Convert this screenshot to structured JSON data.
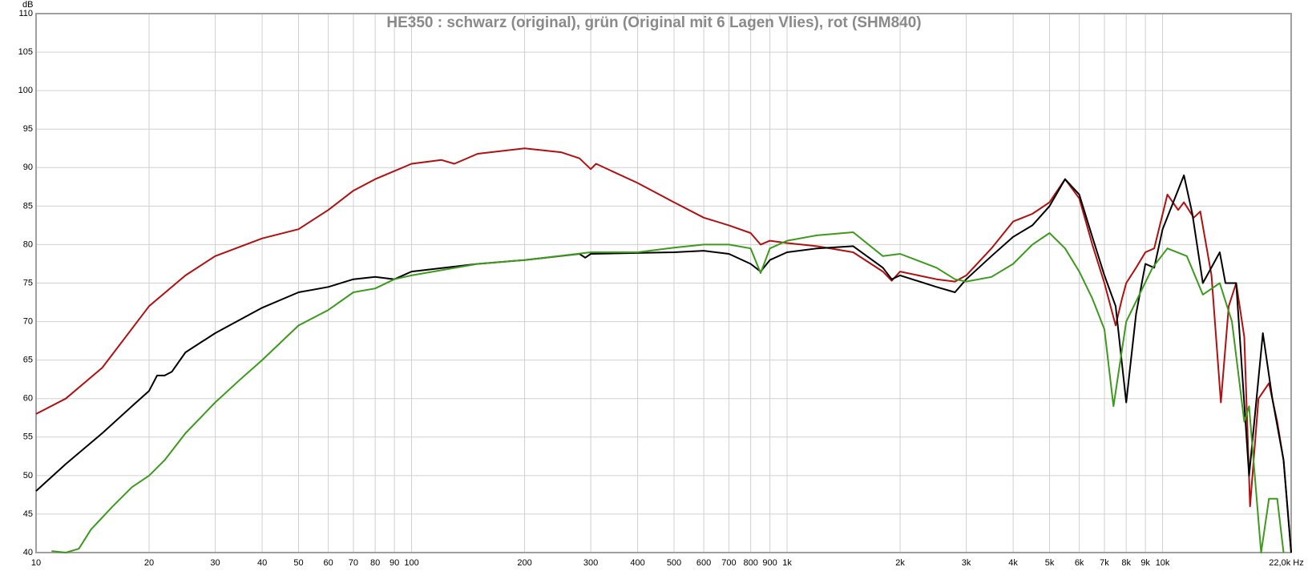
{
  "chart_data": {
    "type": "line",
    "title": "HE350 : schwarz (original), grün (Original mit 6 Lagen Vlies), rot (SHM840)",
    "ylabel": "dB",
    "log_x": true,
    "grid": true,
    "xlim": [
      10,
      22000
    ],
    "ylim": [
      40,
      110
    ],
    "yticks": [
      40,
      45,
      50,
      55,
      60,
      65,
      70,
      75,
      80,
      85,
      90,
      95,
      100,
      105,
      110
    ],
    "xticks": [
      10,
      20,
      30,
      40,
      50,
      60,
      70,
      80,
      90,
      100,
      200,
      300,
      400,
      500,
      600,
      700,
      800,
      900,
      {
        "value": 1000,
        "label": "1k"
      },
      {
        "value": 2000,
        "label": "2k"
      },
      {
        "value": 3000,
        "label": "3k"
      },
      {
        "value": 4000,
        "label": "4k"
      },
      {
        "value": 5000,
        "label": "5k"
      },
      {
        "value": 6000,
        "label": "6k"
      },
      {
        "value": 7000,
        "label": "7k"
      },
      {
        "value": 8000,
        "label": "8k"
      },
      {
        "value": 9000,
        "label": "9k"
      },
      {
        "value": 10000,
        "label": "10k"
      },
      {
        "value": 22000,
        "label": "22,0k Hz"
      }
    ],
    "series": [
      {
        "color": "#b01010",
        "x": [
          10,
          12,
          15,
          20,
          25,
          30,
          40,
          50,
          60,
          70,
          80,
          100,
          120,
          130,
          150,
          200,
          250,
          280,
          300,
          310,
          400,
          500,
          600,
          700,
          800,
          850,
          900,
          1000,
          1200,
          1500,
          1800,
          1900,
          2000,
          2500,
          2800,
          3000,
          3500,
          4000,
          4500,
          5000,
          5500,
          6000,
          6500,
          7000,
          7500,
          7800,
          8000,
          8500,
          9000,
          9500,
          10300,
          11000,
          11400,
          12100,
          12600,
          13500,
          14300,
          15000,
          15700,
          16500,
          17100,
          18000,
          19200,
          20200,
          21000,
          22000
        ],
        "values": [
          58,
          60,
          64,
          72,
          76,
          78.5,
          80.8,
          82,
          84.5,
          87,
          88.5,
          90.5,
          91,
          90.5,
          91.8,
          92.5,
          92,
          91.2,
          89.8,
          90.5,
          88,
          85.5,
          83.5,
          82.5,
          81.5,
          80,
          80.5,
          80.2,
          79.8,
          79,
          76.5,
          75.3,
          76.5,
          75.5,
          75.2,
          76,
          79.5,
          83,
          84,
          85.5,
          88.5,
          86,
          80,
          75,
          69.5,
          73,
          75,
          77,
          79,
          79.5,
          86.5,
          84.5,
          85.5,
          83.5,
          84.3,
          76,
          59.5,
          72,
          75,
          68,
          46,
          60,
          62,
          57,
          52,
          40
        ]
      },
      {
        "color": "#000000",
        "x": [
          10,
          12,
          15,
          18,
          20,
          21,
          22,
          23,
          25,
          30,
          40,
          50,
          60,
          70,
          80,
          90,
          100,
          150,
          200,
          280,
          290,
          300,
          500,
          600,
          700,
          800,
          850,
          900,
          1000,
          1200,
          1500,
          1800,
          1900,
          2000,
          2500,
          2800,
          3000,
          3500,
          4000,
          4500,
          5000,
          5500,
          6000,
          6500,
          7000,
          7500,
          8000,
          8500,
          9000,
          9500,
          10000,
          11400,
          12000,
          12800,
          14200,
          14700,
          15700,
          17000,
          18500,
          19600,
          21000,
          22000
        ],
        "values": [
          48,
          51.5,
          55.5,
          59,
          61,
          63,
          63,
          63.5,
          66,
          68.5,
          71.8,
          73.8,
          74.5,
          75.5,
          75.8,
          75.5,
          76.5,
          77.5,
          78,
          78.8,
          78.3,
          78.8,
          79,
          79.2,
          78.8,
          77.5,
          76.5,
          78,
          79,
          79.5,
          79.8,
          77,
          75.5,
          76,
          74.5,
          73.8,
          75.5,
          78.5,
          81,
          82.5,
          85,
          88.5,
          86.5,
          81,
          76,
          72,
          59.5,
          71,
          77.5,
          77,
          82,
          89,
          84,
          75,
          79,
          75,
          75,
          50,
          68.5,
          60,
          52,
          40
        ]
      },
      {
        "color": "#3c9a1c",
        "x": [
          11,
          12,
          13,
          14,
          16,
          18,
          20,
          22,
          25,
          30,
          35,
          40,
          50,
          60,
          70,
          80,
          90,
          100,
          150,
          200,
          300,
          400,
          500,
          600,
          700,
          800,
          850,
          900,
          1000,
          1200,
          1500,
          1800,
          2000,
          2500,
          2800,
          3000,
          3500,
          4000,
          4500,
          5000,
          5500,
          6000,
          6500,
          7000,
          7400,
          8000,
          9400,
          10300,
          11600,
          12800,
          14200,
          15300,
          16500,
          17000,
          18300,
          19200,
          20200,
          21000
        ],
        "values": [
          40.2,
          40,
          40.5,
          43,
          46,
          48.5,
          50,
          52,
          55.5,
          59.5,
          62.5,
          65,
          69.5,
          71.5,
          73.8,
          74.3,
          75.5,
          76,
          77.5,
          78,
          79,
          79,
          79.6,
          80,
          80,
          79.5,
          76.3,
          79.5,
          80.5,
          81.2,
          81.6,
          78.5,
          78.8,
          77,
          75.5,
          75.2,
          75.8,
          77.5,
          80,
          81.5,
          79.5,
          76.5,
          73,
          69,
          59,
          70,
          77,
          79.5,
          78.5,
          73.5,
          75,
          70,
          57,
          59,
          40,
          47,
          47,
          40
        ]
      }
    ]
  }
}
